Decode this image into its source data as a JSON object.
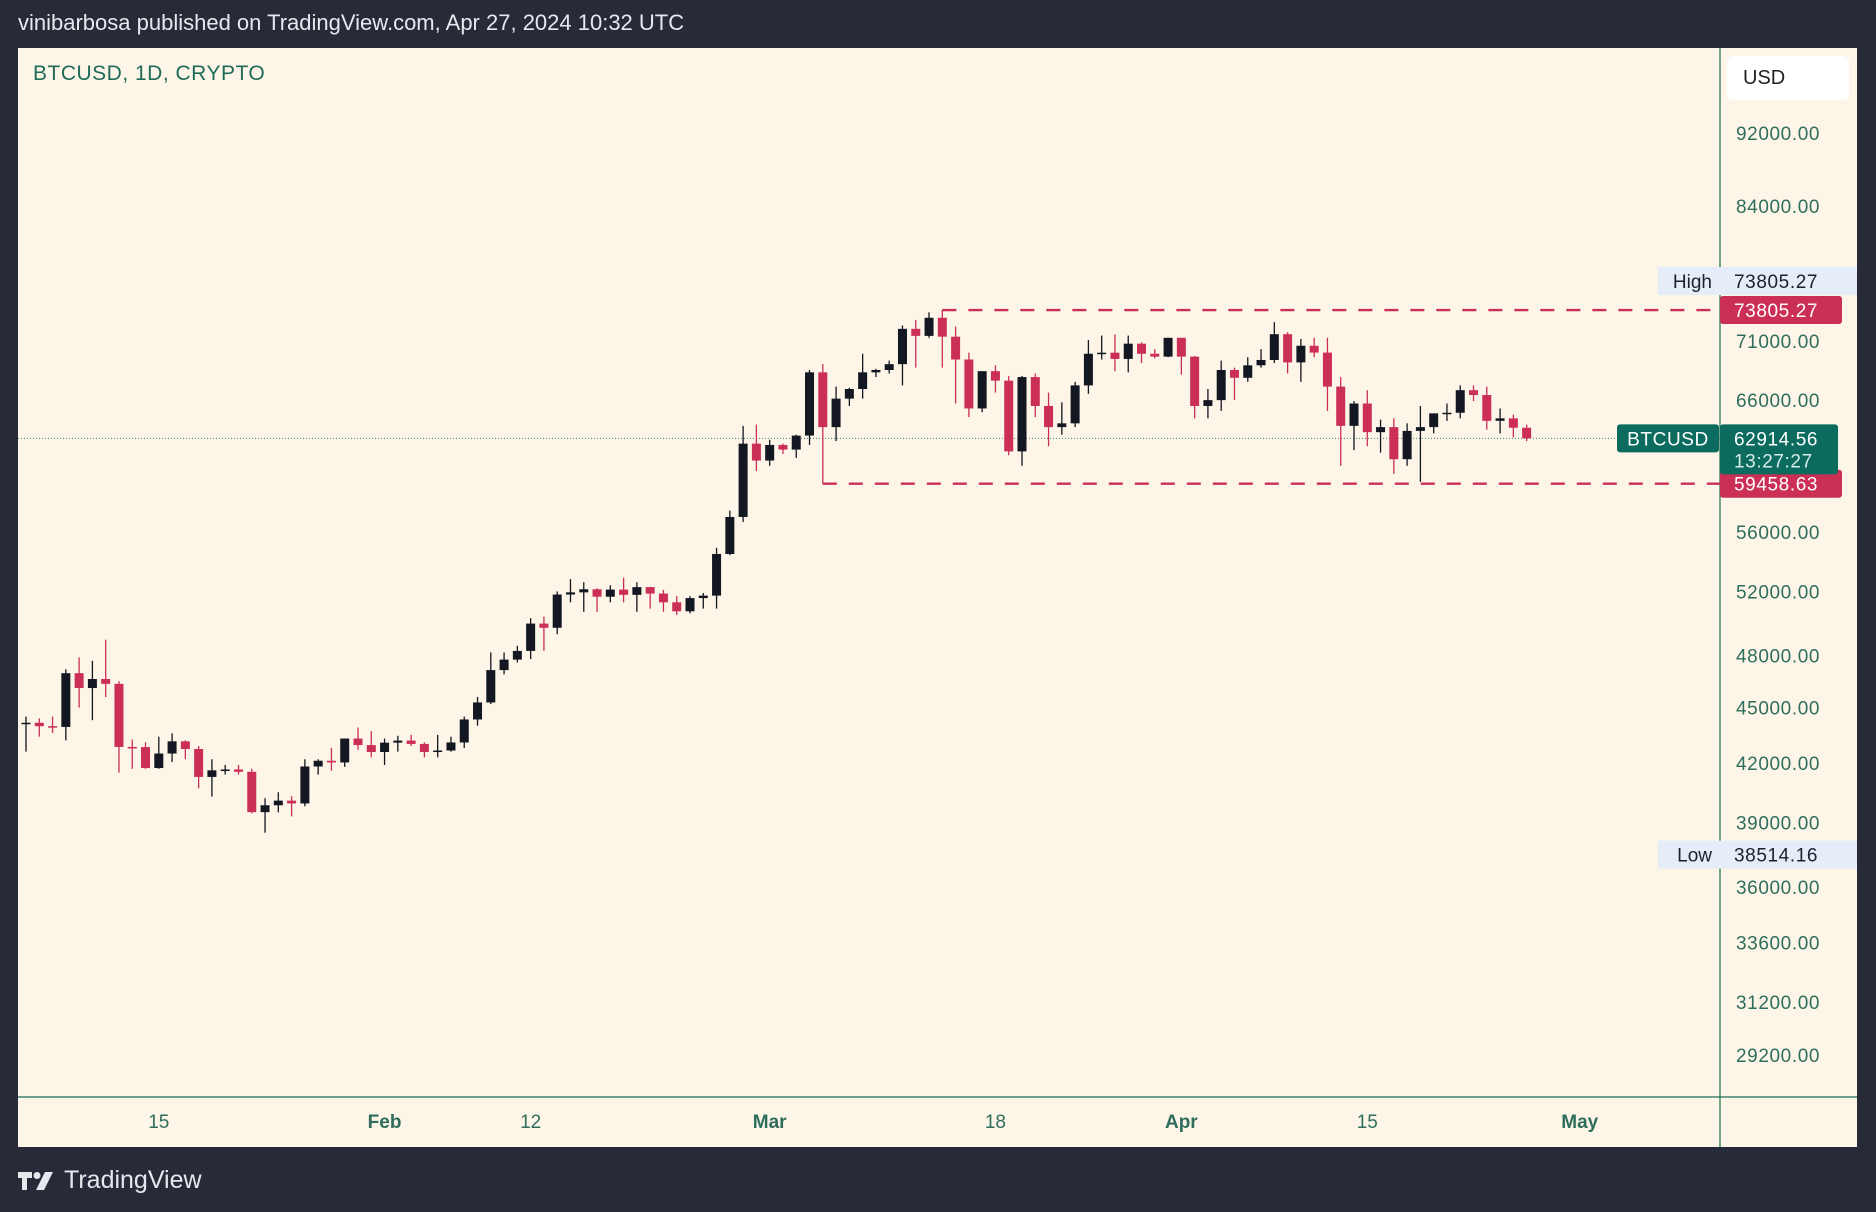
{
  "header": {
    "published": "vinibarbosa published on TradingView.com, Apr 27, 2024 10:32 UTC"
  },
  "footer": {
    "brand": "TradingView"
  },
  "chart_data": {
    "type": "candlestick",
    "title": "BTCUSD, 1D, CRYPTO",
    "currency": "USD",
    "scale": "log",
    "ylim": [
      27500,
      98000
    ],
    "y_ticks": [
      "92000.00",
      "84000.00",
      "71000.00",
      "66000.00",
      "56000.00",
      "52000.00",
      "48000.00",
      "45000.00",
      "42000.00",
      "39000.00",
      "36000.00",
      "33600.00",
      "31200.00",
      "29200.00"
    ],
    "x_ticks": [
      {
        "label": "15",
        "date": "2024-01-15",
        "bold": false
      },
      {
        "label": "Feb",
        "date": "2024-02-01",
        "bold": true
      },
      {
        "label": "12",
        "date": "2024-02-12",
        "bold": false
      },
      {
        "label": "Mar",
        "date": "2024-03-01",
        "bold": true
      },
      {
        "label": "18",
        "date": "2024-03-18",
        "bold": false
      },
      {
        "label": "Apr",
        "date": "2024-04-01",
        "bold": true
      },
      {
        "label": "15",
        "date": "2024-04-15",
        "bold": false
      },
      {
        "label": "May",
        "date": "2024-05-01",
        "bold": true
      }
    ],
    "high": {
      "label": "High",
      "value": "73805.27"
    },
    "low": {
      "label": "Low",
      "value": "38514.16"
    },
    "last": {
      "symbol": "BTCUSD",
      "value": "62914.56",
      "countdown": "13:27:27"
    },
    "levels": [
      {
        "value": 73805.27,
        "label": "73805.27",
        "from": "2024-03-14"
      },
      {
        "value": 59458.63,
        "label": "59458.63",
        "from": "2024-03-05"
      }
    ],
    "colors": {
      "up": "#131722",
      "down": "#cc2f55",
      "level": "#cc2f55",
      "last": "#0c6b5f",
      "axis_text": "#2f6e5c",
      "bg": "#fcf5e8"
    },
    "start_date": "2024-01-05",
    "ohlc": [
      [
        44150,
        44500,
        42600,
        44160
      ],
      [
        44160,
        44400,
        43400,
        43970
      ],
      [
        43970,
        44500,
        43600,
        43930
      ],
      [
        43930,
        47200,
        43200,
        46970
      ],
      [
        46970,
        47900,
        45000,
        46110
      ],
      [
        46110,
        47700,
        44300,
        46630
      ],
      [
        46630,
        48970,
        45600,
        46350
      ],
      [
        46350,
        46500,
        41500,
        42850
      ],
      [
        42850,
        43250,
        41700,
        42840
      ],
      [
        42840,
        43100,
        41700,
        41740
      ],
      [
        41740,
        43400,
        41700,
        42500
      ],
      [
        42500,
        43580,
        42050,
        43150
      ],
      [
        43150,
        43200,
        42200,
        42740
      ],
      [
        42740,
        42900,
        40700,
        41280
      ],
      [
        41280,
        42200,
        40280,
        41620
      ],
      [
        41620,
        41900,
        41400,
        41665
      ],
      [
        41665,
        41900,
        41400,
        41545
      ],
      [
        41545,
        41700,
        39450,
        39510
      ],
      [
        39510,
        40200,
        38514,
        39850
      ],
      [
        39850,
        40500,
        39500,
        40080
      ],
      [
        40080,
        40300,
        39300,
        39940
      ],
      [
        39940,
        42200,
        39800,
        41820
      ],
      [
        41820,
        42200,
        41400,
        42120
      ],
      [
        42120,
        42800,
        41600,
        42030
      ],
      [
        42030,
        43300,
        41800,
        43300
      ],
      [
        43300,
        43900,
        42700,
        42950
      ],
      [
        42950,
        43700,
        42300,
        42580
      ],
      [
        42580,
        43300,
        41900,
        43080
      ],
      [
        43080,
        43450,
        42600,
        43190
      ],
      [
        43190,
        43500,
        42900,
        43010
      ],
      [
        43010,
        43100,
        42300,
        42580
      ],
      [
        42580,
        43500,
        42300,
        42660
      ],
      [
        42660,
        43400,
        42600,
        43090
      ],
      [
        43090,
        44500,
        42800,
        44340
      ],
      [
        44340,
        45600,
        44000,
        45290
      ],
      [
        45290,
        48200,
        45200,
        47150
      ],
      [
        47150,
        48200,
        46900,
        47770
      ],
      [
        47770,
        48600,
        47600,
        48290
      ],
      [
        48290,
        50300,
        47800,
        49960
      ],
      [
        49960,
        50400,
        48300,
        49700
      ],
      [
        49700,
        52000,
        49300,
        51800
      ],
      [
        51800,
        52800,
        51300,
        51940
      ],
      [
        51940,
        52600,
        50700,
        52140
      ],
      [
        52140,
        52200,
        50700,
        51660
      ],
      [
        51660,
        52400,
        51300,
        52120
      ],
      [
        52120,
        52900,
        51300,
        51780
      ],
      [
        51780,
        52600,
        50700,
        52280
      ],
      [
        52280,
        52300,
        50900,
        51860
      ],
      [
        51860,
        52100,
        50700,
        51300
      ],
      [
        51300,
        51700,
        50500,
        50730
      ],
      [
        50730,
        51700,
        50600,
        51570
      ],
      [
        51570,
        51900,
        50900,
        51730
      ],
      [
        51730,
        54900,
        50900,
        54480
      ],
      [
        54480,
        57500,
        54400,
        57050
      ],
      [
        57050,
        63900,
        56700,
        62500
      ],
      [
        62500,
        64000,
        60400,
        61200
      ],
      [
        61200,
        62800,
        60800,
        62400
      ],
      [
        62400,
        62500,
        61700,
        62040
      ],
      [
        62040,
        63200,
        61400,
        63130
      ],
      [
        63130,
        68500,
        62400,
        68300
      ],
      [
        68300,
        69000,
        59458,
        63800
      ],
      [
        63800,
        67100,
        62700,
        66100
      ],
      [
        66100,
        67000,
        65500,
        66900
      ],
      [
        66900,
        69900,
        66100,
        68300
      ],
      [
        68300,
        68600,
        67900,
        68500
      ],
      [
        68500,
        69300,
        68200,
        69000
      ],
      [
        69000,
        72400,
        67200,
        72100
      ],
      [
        72100,
        72900,
        68700,
        71470
      ],
      [
        71470,
        73600,
        71300,
        73100
      ],
      [
        73100,
        73805,
        68700,
        71400
      ],
      [
        71400,
        72300,
        65700,
        69400
      ],
      [
        69400,
        70000,
        64600,
        65300
      ],
      [
        65300,
        68400,
        65000,
        68400
      ],
      [
        68400,
        68900,
        66600,
        67600
      ],
      [
        67600,
        68000,
        61600,
        61900
      ],
      [
        61900,
        68000,
        60800,
        67900
      ],
      [
        67900,
        68200,
        64600,
        65500
      ],
      [
        65500,
        66600,
        62300,
        63800
      ],
      [
        63800,
        65800,
        63200,
        64100
      ],
      [
        64100,
        67500,
        63800,
        67200
      ],
      [
        67200,
        71100,
        66500,
        69900
      ],
      [
        69900,
        71500,
        69400,
        69990
      ],
      [
        69990,
        71600,
        68400,
        69450
      ],
      [
        69450,
        71500,
        68300,
        70780
      ],
      [
        70780,
        70900,
        69100,
        69900
      ],
      [
        69900,
        70300,
        69500,
        69650
      ],
      [
        69650,
        71300,
        69600,
        71300
      ],
      [
        71300,
        71300,
        68100,
        69650
      ],
      [
        69650,
        69700,
        64500,
        65500
      ],
      [
        65500,
        66900,
        64500,
        65980
      ],
      [
        65980,
        69300,
        65100,
        68500
      ],
      [
        68500,
        68700,
        66000,
        67840
      ],
      [
        67840,
        69600,
        67500,
        68900
      ],
      [
        68900,
        70300,
        68700,
        69360
      ],
      [
        69360,
        72700,
        69100,
        71620
      ],
      [
        71620,
        71800,
        68200,
        69150
      ],
      [
        69150,
        71200,
        67500,
        70600
      ],
      [
        70600,
        71300,
        69600,
        70000
      ],
      [
        70000,
        71300,
        65100,
        67100
      ],
      [
        67100,
        67900,
        60800,
        63900
      ],
      [
        63900,
        65900,
        62000,
        65700
      ],
      [
        65700,
        66800,
        62300,
        63400
      ],
      [
        63400,
        64400,
        61800,
        63800
      ],
      [
        63800,
        64500,
        60200,
        61300
      ],
      [
        61300,
        64100,
        60800,
        63500
      ],
      [
        63500,
        65500,
        59600,
        63800
      ],
      [
        63800,
        64900,
        63300,
        64900
      ],
      [
        64900,
        65700,
        64300,
        64950
      ],
      [
        64950,
        67200,
        64500,
        66800
      ],
      [
        66800,
        67200,
        65900,
        66400
      ],
      [
        66400,
        67100,
        63600,
        64300
      ],
      [
        64300,
        65300,
        63300,
        64500
      ],
      [
        64500,
        64800,
        63000,
        63750
      ],
      [
        63750,
        64000,
        62700,
        62915
      ]
    ]
  }
}
